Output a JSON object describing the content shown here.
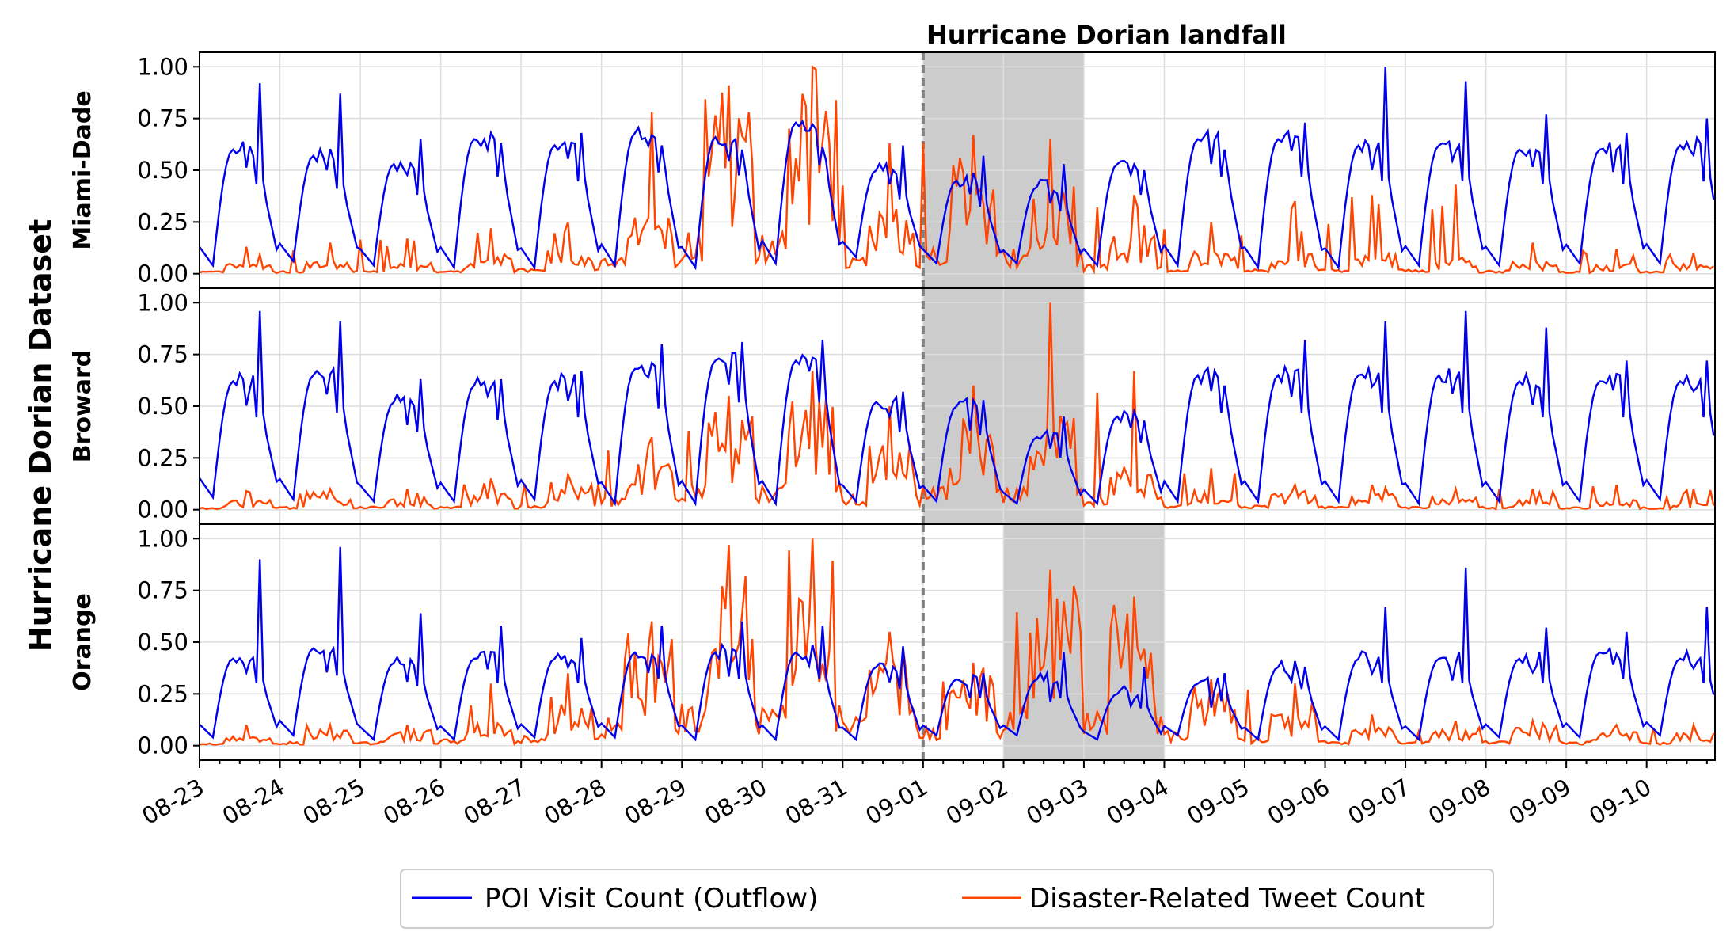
{
  "chart_data": {
    "type": "line",
    "title": "",
    "suptitle": "Hurricane Dorian Dataset",
    "annotation": "Hurricane Dorian landfall",
    "landfall_day_index": 9,
    "x_tick_labels": [
      "08-23",
      "08-24",
      "08-25",
      "08-26",
      "08-27",
      "08-28",
      "08-29",
      "08-30",
      "08-31",
      "09-01",
      "09-02",
      "09-03",
      "09-04",
      "09-05",
      "09-06",
      "09-07",
      "09-08",
      "09-09",
      "09-10"
    ],
    "x_range_days": [
      0,
      18.85
    ],
    "ylim": [
      -0.07,
      1.07
    ],
    "y_ticks": [
      "0.00",
      "0.25",
      "0.50",
      "0.75",
      "1.00"
    ],
    "grid": true,
    "legend": {
      "placement": "bottom-center",
      "entries": [
        {
          "label": "POI Visit Count (Outflow)",
          "color": "#0000ee"
        },
        {
          "label": "Disaster-Related Tweet Count",
          "color": "#ff4500"
        }
      ]
    },
    "panels": [
      {
        "name": "Miami-Dade",
        "shade_days": [
          9,
          11
        ],
        "poi_daily": {
          "min": [
            0.04,
            0.06,
            0.04,
            0.03,
            0.03,
            0.04,
            0.03,
            0.05,
            0.08,
            0.05,
            0.05,
            0.04,
            0.04,
            0.03,
            0.03,
            0.04,
            0.04,
            0.05,
            0.05
          ],
          "peak": [
            0.6,
            0.57,
            0.53,
            0.65,
            0.62,
            0.68,
            0.66,
            0.73,
            0.5,
            0.45,
            0.42,
            0.53,
            0.65,
            0.65,
            0.62,
            0.62,
            0.6,
            0.6,
            0.62
          ],
          "spike": [
            0.92,
            0.87,
            0.65,
            0.63,
            0.68,
            0.62,
            0.6,
            0.61,
            0.62,
            0.57,
            0.53,
            0.5,
            0.6,
            0.73,
            1.0,
            0.93,
            0.77,
            0.68,
            0.75
          ]
        },
        "tweet_daily": {
          "level": [
            0.03,
            0.04,
            0.04,
            0.06,
            0.07,
            0.2,
            0.5,
            0.55,
            0.2,
            0.35,
            0.3,
            0.12,
            0.07,
            0.06,
            0.06,
            0.05,
            0.04,
            0.03,
            0.03
          ],
          "max": [
            0.13,
            0.15,
            0.17,
            0.22,
            0.25,
            0.78,
            0.91,
            1.0,
            0.63,
            0.67,
            0.65,
            0.38,
            0.25,
            0.35,
            0.38,
            0.43,
            0.15,
            0.12,
            0.1
          ]
        }
      },
      {
        "name": "Broward",
        "shade_days": [
          9,
          11
        ],
        "poi_daily": {
          "min": [
            0.06,
            0.05,
            0.04,
            0.04,
            0.05,
            0.03,
            0.03,
            0.03,
            0.04,
            0.04,
            0.03,
            0.03,
            0.04,
            0.04,
            0.04,
            0.03,
            0.04,
            0.04,
            0.05
          ],
          "peak": [
            0.62,
            0.65,
            0.52,
            0.6,
            0.62,
            0.68,
            0.72,
            0.72,
            0.52,
            0.5,
            0.35,
            0.45,
            0.65,
            0.65,
            0.65,
            0.65,
            0.62,
            0.62,
            0.62
          ],
          "spike": [
            0.96,
            0.91,
            0.63,
            0.63,
            0.67,
            0.8,
            0.81,
            0.82,
            0.57,
            0.53,
            0.45,
            0.43,
            0.6,
            0.82,
            0.91,
            0.96,
            0.88,
            0.72,
            0.72
          ]
        },
        "tweet_daily": {
          "level": [
            0.03,
            0.04,
            0.04,
            0.05,
            0.08,
            0.15,
            0.3,
            0.35,
            0.2,
            0.3,
            0.3,
            0.15,
            0.06,
            0.06,
            0.05,
            0.04,
            0.03,
            0.03,
            0.02
          ],
          "max": [
            0.09,
            0.1,
            0.1,
            0.15,
            0.17,
            0.35,
            0.55,
            0.67,
            0.5,
            0.6,
            1.0,
            0.67,
            0.2,
            0.12,
            0.12,
            0.1,
            0.1,
            0.12,
            0.1
          ]
        }
      },
      {
        "name": "Orange",
        "shade_days": [
          10,
          12
        ],
        "poi_daily": {
          "min": [
            0.04,
            0.05,
            0.03,
            0.03,
            0.04,
            0.04,
            0.03,
            0.03,
            0.03,
            0.05,
            0.05,
            0.03,
            0.05,
            0.03,
            0.03,
            0.03,
            0.04,
            0.04,
            0.05
          ],
          "peak": [
            0.42,
            0.47,
            0.4,
            0.42,
            0.42,
            0.45,
            0.45,
            0.45,
            0.38,
            0.32,
            0.32,
            0.25,
            0.3,
            0.38,
            0.42,
            0.42,
            0.42,
            0.45,
            0.42
          ],
          "spike": [
            0.9,
            0.96,
            0.64,
            0.58,
            0.52,
            0.58,
            0.6,
            0.58,
            0.48,
            0.35,
            0.45,
            0.38,
            0.35,
            0.38,
            0.67,
            0.86,
            0.57,
            0.55,
            0.67
          ]
        },
        "tweet_daily": {
          "level": [
            0.03,
            0.05,
            0.05,
            0.08,
            0.12,
            0.35,
            0.55,
            0.6,
            0.35,
            0.25,
            0.5,
            0.45,
            0.18,
            0.1,
            0.06,
            0.05,
            0.06,
            0.05,
            0.04
          ],
          "max": [
            0.1,
            0.1,
            0.1,
            0.3,
            0.35,
            0.6,
            0.97,
            1.0,
            0.55,
            0.4,
            0.85,
            0.72,
            0.32,
            0.3,
            0.15,
            0.12,
            0.12,
            0.1,
            0.1
          ]
        }
      }
    ]
  }
}
